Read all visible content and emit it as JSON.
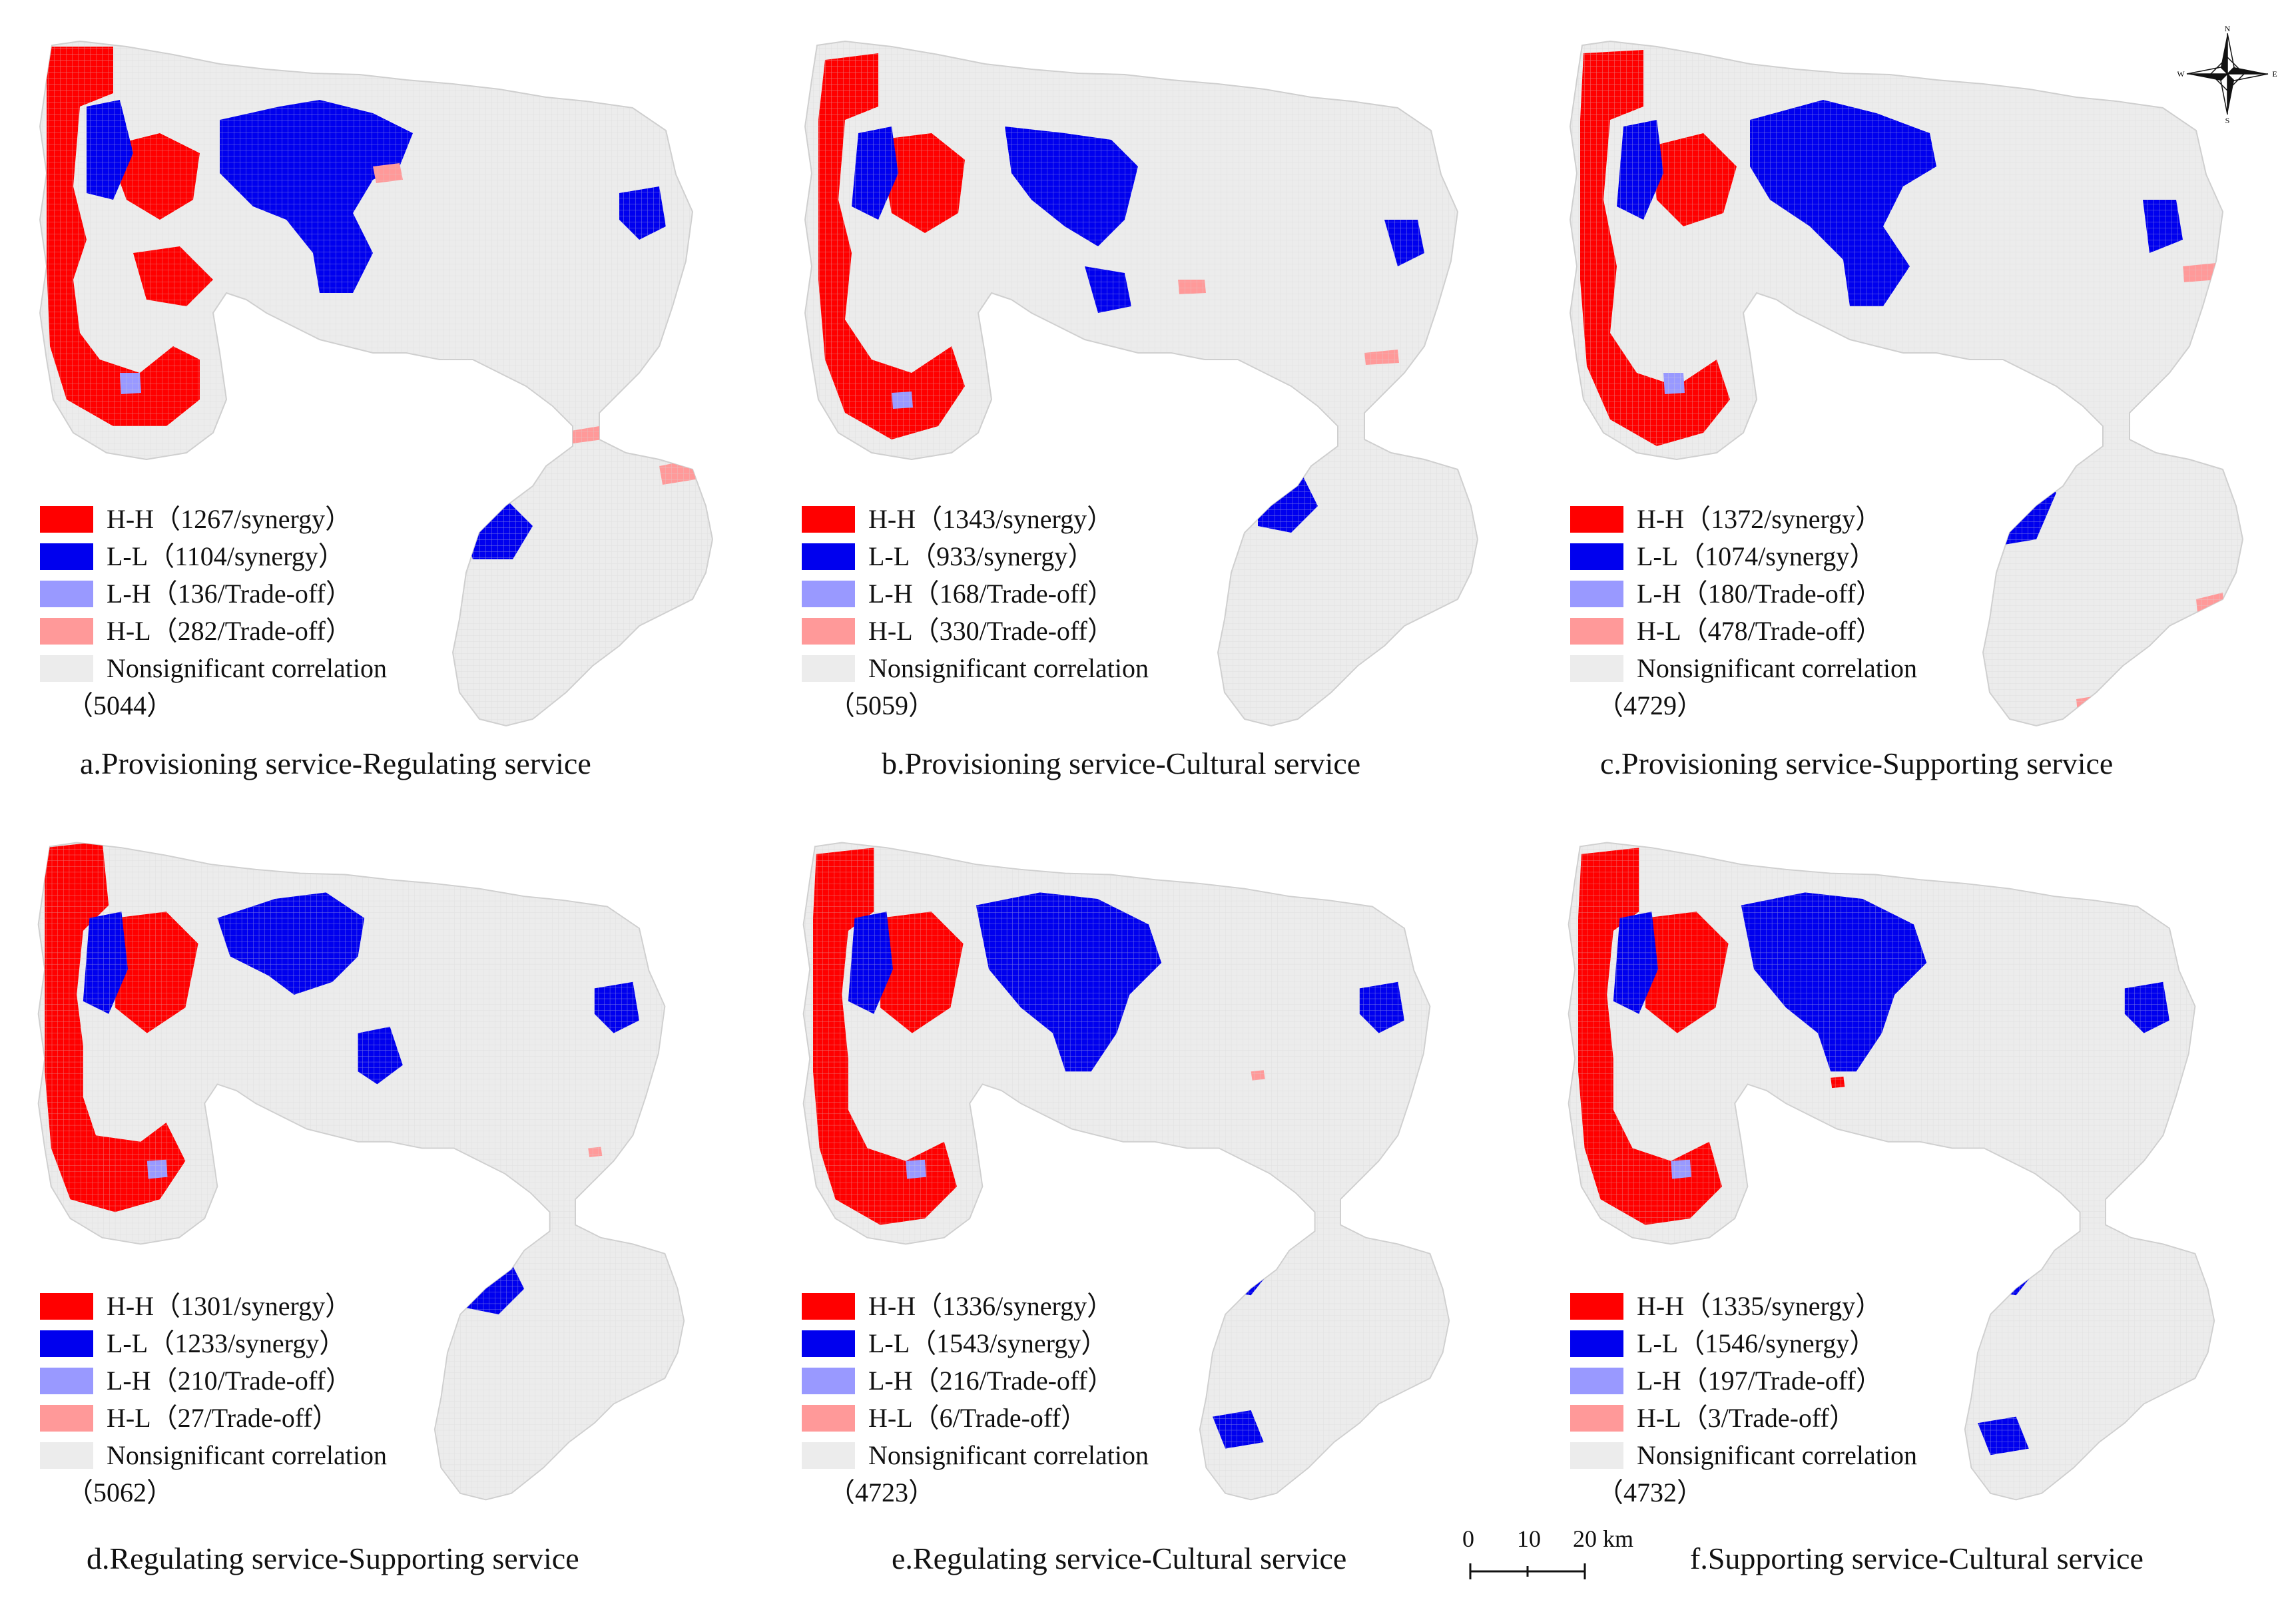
{
  "colors": {
    "hh": "#ff0000",
    "ll": "#0000ee",
    "lh": "#9999ff",
    "hl": "#ff9999",
    "ns": "#ececec",
    "grid": "#d6d6d6"
  },
  "panels": [
    {
      "caption": "a.Provisioning service-Regulating service",
      "legend": [
        {
          "key": "hh",
          "text": "H-H（1267/synergy）"
        },
        {
          "key": "ll",
          "text": "L-L（1104/synergy）"
        },
        {
          "key": "lh",
          "text": "L-H（136/Trade-off）"
        },
        {
          "key": "hl",
          "text": "H-L（282/Trade-off）"
        },
        {
          "key": "ns",
          "text": "Nonsignificant correlation"
        }
      ],
      "ns_count": "（5044）"
    },
    {
      "caption": "b.Provisioning service-Cultural service",
      "legend": [
        {
          "key": "hh",
          "text": "H-H（1343/synergy）"
        },
        {
          "key": "ll",
          "text": "L-L（933/synergy）"
        },
        {
          "key": "lh",
          "text": "L-H（168/Trade-off）"
        },
        {
          "key": "hl",
          "text": "H-L（330/Trade-off）"
        },
        {
          "key": "ns",
          "text": "Nonsignificant correlation"
        }
      ],
      "ns_count": "（5059）"
    },
    {
      "caption": "c.Provisioning service-Supporting service",
      "legend": [
        {
          "key": "hh",
          "text": "H-H（1372/synergy）"
        },
        {
          "key": "ll",
          "text": "L-L（1074/synergy）"
        },
        {
          "key": "lh",
          "text": "L-H（180/Trade-off）"
        },
        {
          "key": "hl",
          "text": "H-L（478/Trade-off）"
        },
        {
          "key": "ns",
          "text": "Nonsignificant correlation"
        }
      ],
      "ns_count": "（4729）"
    },
    {
      "caption": "d.Regulating service-Supporting service",
      "legend": [
        {
          "key": "hh",
          "text": "H-H（1301/synergy）"
        },
        {
          "key": "ll",
          "text": "L-L（1233/synergy）"
        },
        {
          "key": "lh",
          "text": "L-H（210/Trade-off）"
        },
        {
          "key": "hl",
          "text": "H-L（27/Trade-off）"
        },
        {
          "key": "ns",
          "text": "Nonsignificant correlation"
        }
      ],
      "ns_count": "（5062）"
    },
    {
      "caption": "e.Regulating service-Cultural service",
      "legend": [
        {
          "key": "hh",
          "text": "H-H（1336/synergy）"
        },
        {
          "key": "ll",
          "text": "L-L（1543/synergy）"
        },
        {
          "key": "lh",
          "text": "L-H（216/Trade-off）"
        },
        {
          "key": "hl",
          "text": "H-L（6/Trade-off）"
        },
        {
          "key": "ns",
          "text": "Nonsignificant correlation"
        }
      ],
      "ns_count": "（4723）"
    },
    {
      "caption": "f.Supporting service-Cultural service",
      "legend": [
        {
          "key": "hh",
          "text": "H-H（1335/synergy）"
        },
        {
          "key": "ll",
          "text": "L-L（1546/synergy）"
        },
        {
          "key": "lh",
          "text": "L-H（197/Trade-off）"
        },
        {
          "key": "hl",
          "text": "H-L（3/Trade-off）"
        },
        {
          "key": "ns",
          "text": "Nonsignificant correlation"
        }
      ],
      "ns_count": "（4732）"
    }
  ],
  "compass": {
    "n": "N",
    "s": "S",
    "e": "E",
    "w": "W"
  },
  "scale": {
    "labels": [
      "0",
      "10",
      "20 km"
    ]
  }
}
